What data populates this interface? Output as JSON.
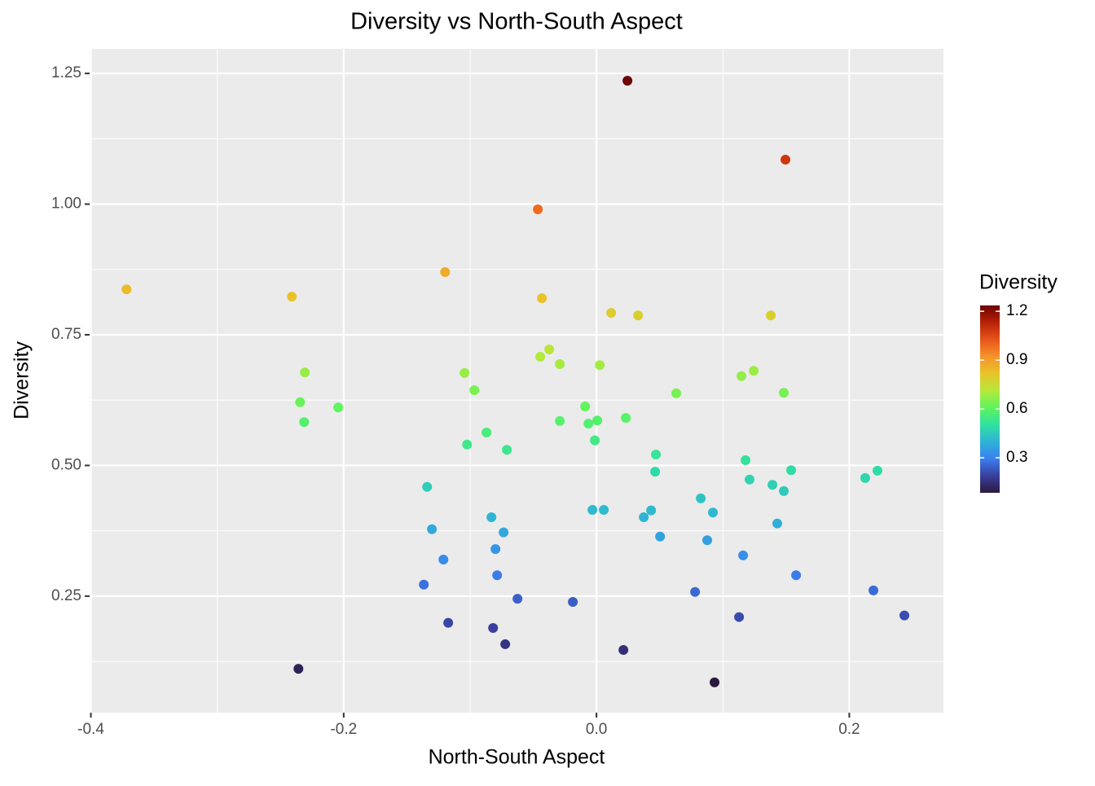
{
  "chart_data": {
    "type": "scatter",
    "title": "Diversity vs North-South Aspect",
    "x_label": "North-South Aspect",
    "y_label": "Diversity",
    "x": [
      0.0245,
      0.1495,
      -0.0464,
      -0.1198,
      -0.3718,
      -0.241,
      -0.0432,
      0.0116,
      0.0329,
      0.1379,
      -0.0374,
      -0.0445,
      -0.029,
      0.0026,
      -0.2307,
      -0.1044,
      0.1244,
      0.1147,
      -0.0966,
      0.0631,
      0.1482,
      -0.2345,
      -0.2043,
      -0.009,
      -0.2313,
      -0.029,
      -0.0064,
      0.0006,
      0.0232,
      -0.087,
      -0.1024,
      -0.0709,
      -0.0013,
      0.047,
      0.1179,
      0.0464,
      0.154,
      0.1211,
      0.2126,
      0.2223,
      0.1392,
      0.1482,
      -0.134,
      0.0825,
      0.0921,
      0.0058,
      -0.0032,
      0.0432,
      0.0374,
      -0.0831,
      0.143,
      -0.1302,
      -0.0735,
      0.0503,
      0.0876,
      -0.0799,
      0.116,
      -0.1211,
      -0.0786,
      0.1579,
      -0.1366,
      0.078,
      0.2191,
      -0.0625,
      -0.0187,
      -0.1173,
      0.1128,
      0.2436,
      -0.0818,
      -0.0722,
      0.0213,
      -0.2358,
      0.0934
    ],
    "values": [
      1.236,
      1.085,
      0.99,
      0.87,
      0.837,
      0.823,
      0.82,
      0.792,
      0.787,
      0.787,
      0.722,
      0.708,
      0.694,
      0.692,
      0.678,
      0.677,
      0.681,
      0.671,
      0.644,
      0.638,
      0.639,
      0.621,
      0.611,
      0.613,
      0.583,
      0.585,
      0.58,
      0.586,
      0.591,
      0.563,
      0.54,
      0.53,
      0.548,
      0.521,
      0.51,
      0.488,
      0.491,
      0.473,
      0.476,
      0.49,
      0.463,
      0.451,
      0.459,
      0.437,
      0.41,
      0.415,
      0.415,
      0.414,
      0.401,
      0.401,
      0.389,
      0.378,
      0.372,
      0.364,
      0.357,
      0.34,
      0.328,
      0.32,
      0.29,
      0.29,
      0.272,
      0.258,
      0.261,
      0.245,
      0.239,
      0.199,
      0.21,
      0.213,
      0.189,
      0.158,
      0.147,
      0.111,
      0.085
    ],
    "xlim": [
      -0.401,
      0.2745
    ],
    "xticks": [
      -0.4,
      -0.2,
      {
        "value": 0,
        "label": "0.0"
      },
      0.2
    ],
    "x_minor_grid": [
      -0.3,
      -0.1,
      0.1
    ],
    "ylim": [
      0.027,
      1.297
    ],
    "yticks": [
      0.25,
      {
        "value": 0.5,
        "label": "0.50"
      },
      0.75,
      {
        "value": 1,
        "label": "1.00"
      },
      1.25
    ],
    "y_minor_grid": [
      0.125,
      0.375,
      0.625,
      0.875,
      1.125
    ],
    "grid": true,
    "color_legend": {
      "title": "Diversity",
      "lim": [
        0.085,
        1.236
      ],
      "ticks": [
        0.3,
        0.6,
        0.9,
        1.2
      ],
      "colors": [
        "#2b1a3e",
        "#3a3f9e",
        "#3b7ff0",
        "#2fb3d6",
        "#30e1a0",
        "#5ef55e",
        "#b6e83a",
        "#e9c42a",
        "#f6932a",
        "#e8541a",
        "#b72207",
        "#6e0305"
      ]
    }
  }
}
